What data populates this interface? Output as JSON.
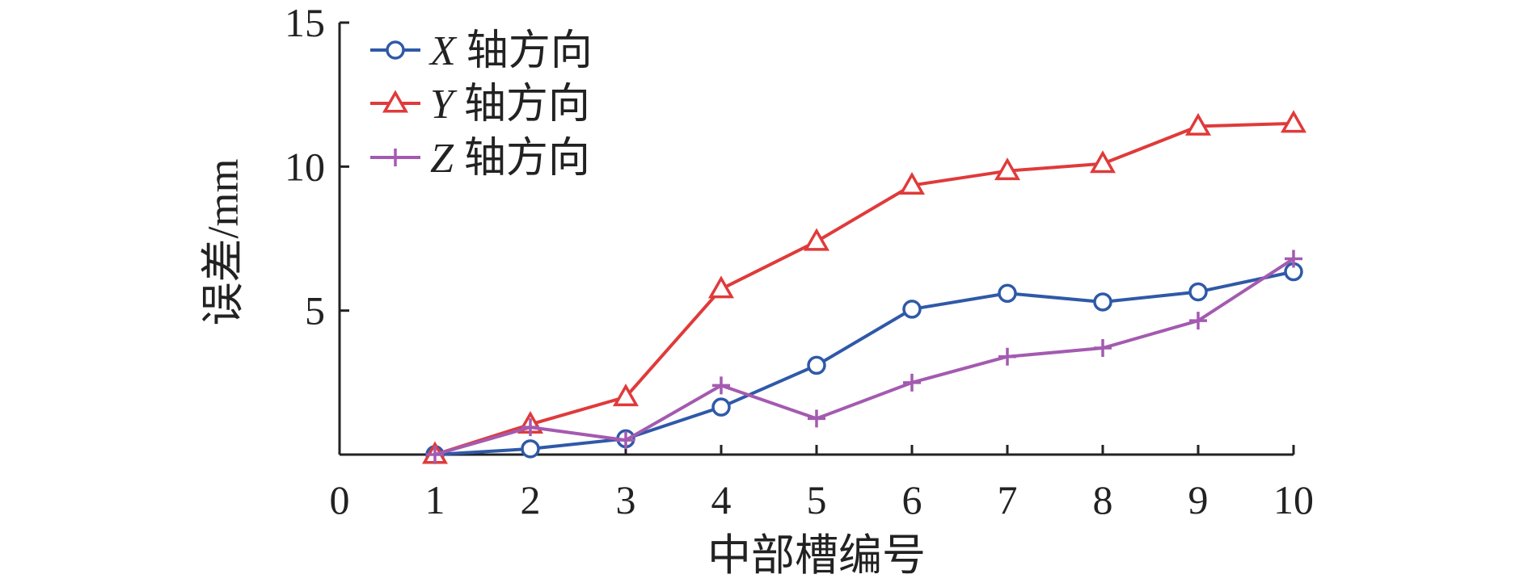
{
  "chart_data": {
    "type": "line",
    "x": [
      1,
      2,
      3,
      4,
      5,
      6,
      7,
      8,
      9,
      10
    ],
    "x_ticks": [
      "0",
      "1",
      "2",
      "3",
      "4",
      "5",
      "6",
      "7",
      "8",
      "9",
      "10"
    ],
    "y_ticks": [
      "5",
      "10",
      "15"
    ],
    "xlim": [
      0,
      10
    ],
    "ylim": [
      0,
      15
    ],
    "xlabel": "中部槽编号",
    "ylabel": "误差/mm",
    "grid": false,
    "legend_position": "top-left",
    "series": [
      {
        "name": "X 轴方向",
        "symbol": "X",
        "suffix": " 轴方向",
        "color": "#2f59a8",
        "marker": "circle",
        "values": [
          0.0,
          0.2,
          0.55,
          1.65,
          3.1,
          5.05,
          5.6,
          5.3,
          5.65,
          6.35
        ]
      },
      {
        "name": "Y 轴方向",
        "symbol": "Y",
        "suffix": " 轴方向",
        "color": "#e03a3a",
        "marker": "triangle",
        "values": [
          0.0,
          1.05,
          2.0,
          5.75,
          7.4,
          9.35,
          9.85,
          10.1,
          11.4,
          11.5
        ]
      },
      {
        "name": "Z 轴方向",
        "symbol": "Z",
        "suffix": " 轴方向",
        "color": "#a45ab0",
        "marker": "plus",
        "values": [
          0.0,
          0.95,
          0.5,
          2.4,
          1.25,
          2.5,
          3.4,
          3.7,
          4.65,
          6.8
        ]
      }
    ]
  }
}
